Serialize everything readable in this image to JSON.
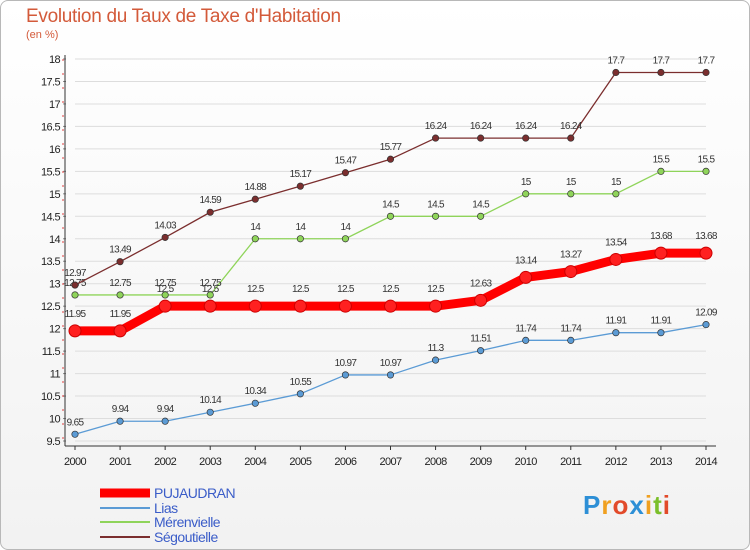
{
  "title": "Evolution du Taux de Taxe d'Habitation",
  "unit": "(en %)",
  "logo": {
    "letters": [
      "P",
      "r",
      "o",
      "x",
      "i",
      "t",
      "i"
    ],
    "colors": [
      "#2d8fd6",
      "#f0a020",
      "#e24a2a",
      "#2d8fd6",
      "#f0a020",
      "#7bbf2a",
      "#e24a2a"
    ]
  },
  "chart_data": {
    "type": "line",
    "title": "Evolution du Taux de Taxe d'Habitation",
    "ylabel": "(en %)",
    "xlabel": "",
    "x": [
      "2000",
      "2001",
      "2002",
      "2003",
      "2004",
      "2005",
      "2006",
      "2007",
      "2008",
      "2009",
      "2010",
      "2011",
      "2012",
      "2013",
      "2014"
    ],
    "ylim": [
      9.5,
      18
    ],
    "yticks": [
      "9.5",
      "10",
      "10.5",
      "11",
      "11.5",
      "12",
      "12.5",
      "13",
      "13.5",
      "14",
      "14.5",
      "15",
      "15.5",
      "16",
      "16.5",
      "17",
      "17.5",
      "18"
    ],
    "legend_position": "bottom-left",
    "series": [
      {
        "name": "PUJAUDRAN",
        "color": "#ff0000",
        "values": [
          11.95,
          11.95,
          12.5,
          12.5,
          12.5,
          12.5,
          12.5,
          12.5,
          12.5,
          12.63,
          13.14,
          13.27,
          13.54,
          13.68,
          13.68
        ],
        "labels": [
          "11.95",
          "11.95",
          "12.5",
          "12.5",
          "12.5",
          "12.5",
          "12.5",
          "12.5",
          "12.5",
          "12.63",
          "13.14",
          "13.27",
          "13.54",
          "13.68",
          "13.68"
        ]
      },
      {
        "name": "Lias",
        "color": "#5b9bd5",
        "values": [
          9.65,
          9.94,
          9.94,
          10.14,
          10.34,
          10.55,
          10.97,
          10.97,
          11.3,
          11.51,
          11.74,
          11.74,
          11.91,
          11.91,
          12.09
        ],
        "labels": [
          "9.65",
          "9.94",
          "9.94",
          "10.14",
          "10.34",
          "10.55",
          "10.97",
          "10.97",
          "11.3",
          "11.51",
          "11.74",
          "11.74",
          "11.91",
          "11.91",
          "12.09"
        ]
      },
      {
        "name": "Mérenvielle",
        "color": "#8fd45a",
        "values": [
          12.75,
          12.75,
          12.75,
          12.75,
          14,
          14,
          14,
          14.5,
          14.5,
          14.5,
          15,
          15,
          15,
          15.5,
          15.5
        ],
        "labels": [
          "12.75",
          "12.75",
          "12.75",
          "12.75",
          "14",
          "14",
          "14",
          "14.5",
          "14.5",
          "14.5",
          "15",
          "15",
          "15",
          "15.5",
          "15.5"
        ]
      },
      {
        "name": "Ségoutielle",
        "color": "#7b2e2e",
        "values": [
          12.97,
          13.49,
          14.03,
          14.59,
          14.88,
          15.17,
          15.47,
          15.77,
          16.24,
          16.24,
          16.24,
          16.24,
          17.7,
          17.7,
          17.7
        ],
        "labels": [
          "12.97",
          "13.49",
          "14.03",
          "14.59",
          "14.88",
          "15.17",
          "15.47",
          "15.77",
          "16.24",
          "16.24",
          "16.24",
          "16.24",
          "17.7",
          "17.7",
          "17.7"
        ]
      }
    ]
  }
}
